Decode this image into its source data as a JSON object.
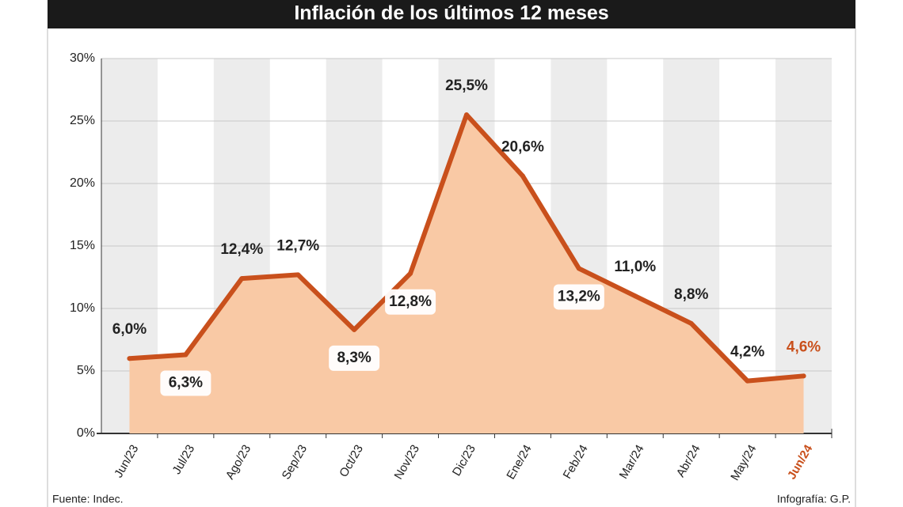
{
  "chart_data": {
    "type": "line",
    "title": "Inflación de los últimos 12 meses",
    "categories": [
      "Jun/23",
      "Jul/23",
      "Ago/23",
      "Sep/23",
      "Oct/23",
      "Nov/23",
      "Dic/23",
      "Ene/24",
      "Feb/24",
      "Mar/24",
      "Abr/24",
      "May/24",
      "Jun/24"
    ],
    "series": [
      {
        "color": "#c9501c",
        "fill": "#f9c9a5",
        "values": [
          6.0,
          6.3,
          12.4,
          12.7,
          8.3,
          12.8,
          25.5,
          20.6,
          13.2,
          11.0,
          8.8,
          4.2,
          4.6
        ],
        "value_labels": [
          "6,0%",
          "6,3%",
          "12,4%",
          "12,7%",
          "8,3%",
          "12,8%",
          "25,5%",
          "20,6%",
          "13,2%",
          "11,0%",
          "8,8%",
          "4,2%",
          "4,6%"
        ]
      }
    ],
    "ylim": [
      0,
      30
    ],
    "yticks": [
      {
        "value": 0,
        "label": "0%"
      },
      {
        "value": 5,
        "label": "5%"
      },
      {
        "value": 10,
        "label": "10%"
      },
      {
        "value": 15,
        "label": "15%"
      },
      {
        "value": 20,
        "label": "20%"
      },
      {
        "value": 25,
        "label": "25%"
      },
      {
        "value": 30,
        "label": "30%"
      }
    ],
    "grid": true,
    "source": "Fuente: Indec.",
    "credit": "Infografía: G.P."
  }
}
